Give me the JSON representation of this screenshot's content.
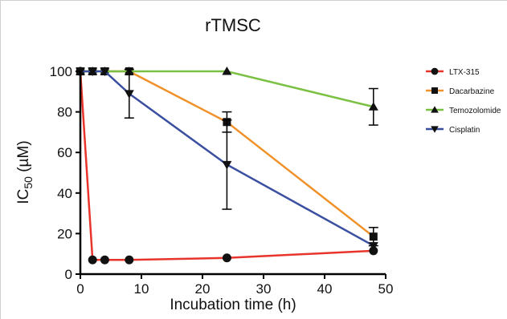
{
  "chart_data": {
    "type": "line",
    "title": "rTMSC",
    "xlabel": "Incubation time (h)",
    "ylabel": {
      "main": "IC",
      "sub": "50",
      "unit": " (µM)"
    },
    "xlim": [
      0,
      50
    ],
    "ylim": [
      0,
      100
    ],
    "xticks": [
      "0",
      "10",
      "20",
      "30",
      "40",
      "50"
    ],
    "yticks": [
      "0",
      "20",
      "40",
      "60",
      "80",
      "100"
    ],
    "grid": false,
    "legend_position": "right",
    "series": [
      {
        "name": "LTX-315",
        "color": "#e8342b",
        "marker": "circle",
        "x": [
          0,
          2,
          4,
          8,
          24,
          48
        ],
        "y": [
          100,
          7,
          7,
          7,
          8,
          11.5
        ],
        "err": [
          0,
          0,
          0,
          0,
          0,
          0
        ]
      },
      {
        "name": "Dacarbazine",
        "color": "#f0912a",
        "marker": "square",
        "x": [
          0,
          2,
          4,
          8,
          24,
          48
        ],
        "y": [
          100,
          100,
          100,
          100,
          75,
          18.5
        ],
        "err": [
          0,
          0,
          0,
          0,
          5,
          4.5
        ]
      },
      {
        "name": "Temozolomide",
        "color": "#7ac143",
        "marker": "triangle-up",
        "x": [
          0,
          2,
          4,
          8,
          24,
          48
        ],
        "y": [
          100,
          100,
          100,
          100,
          100,
          82.5
        ],
        "err": [
          0,
          0,
          0,
          0,
          0,
          9
        ]
      },
      {
        "name": "Cisplatin",
        "color": "#3a4fa0",
        "marker": "triangle-down",
        "x": [
          0,
          2,
          4,
          8,
          24,
          48
        ],
        "y": [
          100,
          100,
          100,
          89,
          54,
          14
        ],
        "err": [
          0,
          0,
          0,
          12,
          22,
          0
        ]
      }
    ]
  }
}
